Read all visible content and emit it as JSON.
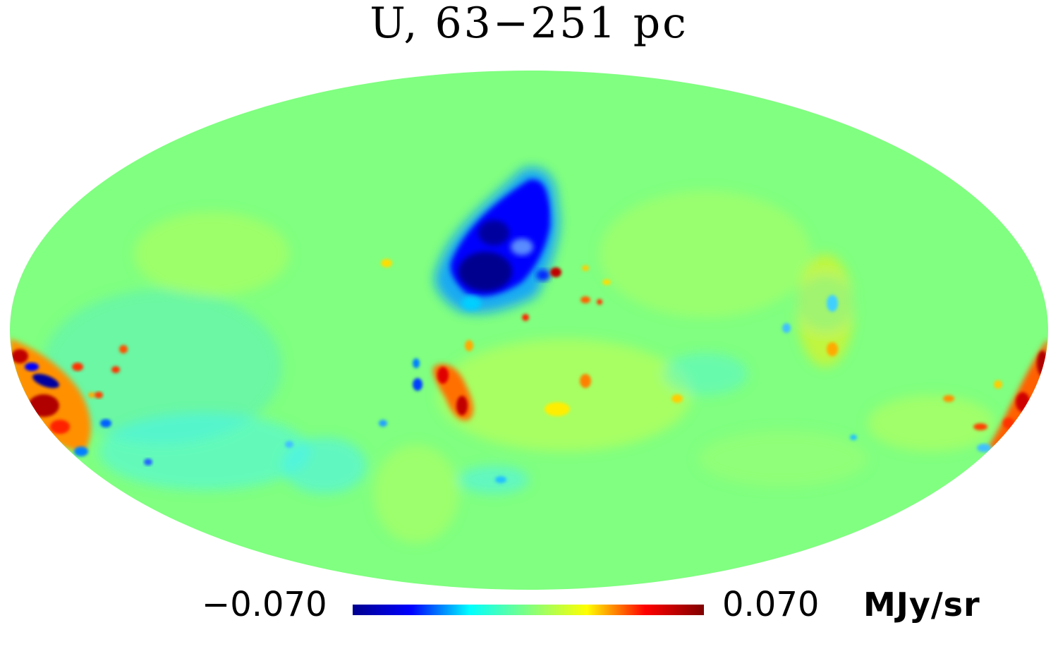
{
  "title": "U, 63−251 pc",
  "colorbar": {
    "min_label": "−0.070",
    "max_label": "0.070",
    "unit": "MJy/sr",
    "min_value": -0.07,
    "max_value": 0.07,
    "colormap": "jet",
    "colors": [
      "#00008f",
      "#0000ff",
      "#00ffff",
      "#80ff80",
      "#ffff00",
      "#ff0000",
      "#800000"
    ]
  },
  "map": {
    "projection": "mollweide",
    "background_value_color": "#80ff80",
    "outside_color": "#ffffff"
  }
}
